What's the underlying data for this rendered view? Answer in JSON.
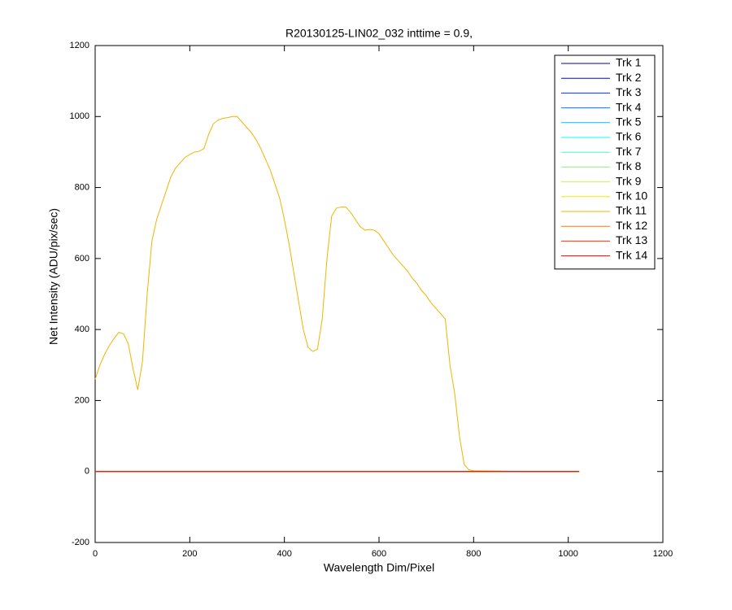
{
  "chart_data": {
    "type": "line",
    "title": "R20130125-LIN02_032 inttime = 0.9,",
    "x_label": "Wavelength Dim/Pixel",
    "y_label": "Net Intensity (ADU/pix/sec)",
    "xlim": [
      0,
      1200
    ],
    "xticks": [
      0,
      200,
      400,
      600,
      800,
      1000,
      1200
    ],
    "ylim": [
      -200,
      1200
    ],
    "yticks": [
      -200,
      0,
      200,
      400,
      600,
      800,
      1000,
      1200
    ],
    "grid": false,
    "legend": "upper right",
    "series": [
      {
        "name": "Trk 1",
        "color": "#0000aa",
        "x": [
          0,
          256,
          512,
          768,
          1023
        ],
        "values": [
          0,
          0,
          0,
          0,
          0
        ]
      },
      {
        "name": "Trk 2",
        "color": "#0000ee",
        "x": [
          0,
          256,
          512,
          768,
          1023
        ],
        "values": [
          0,
          0,
          0,
          0,
          0
        ]
      },
      {
        "name": "Trk 3",
        "color": "#0033ff",
        "x": [
          0,
          256,
          512,
          768,
          1023
        ],
        "values": [
          0,
          0,
          0,
          0,
          0
        ]
      },
      {
        "name": "Trk 4",
        "color": "#0077ff",
        "x": [
          0,
          256,
          512,
          768,
          1023
        ],
        "values": [
          0,
          0,
          0,
          0,
          0
        ]
      },
      {
        "name": "Trk 5",
        "color": "#00bbff",
        "x": [
          0,
          256,
          512,
          768,
          1023
        ],
        "values": [
          0,
          0,
          0,
          0,
          0
        ]
      },
      {
        "name": "Trk 6",
        "color": "#00ffff",
        "x": [
          0,
          256,
          512,
          768,
          1023
        ],
        "values": [
          0,
          0,
          0,
          0,
          0
        ]
      },
      {
        "name": "Trk 7",
        "color": "#44ffbb",
        "x": [
          0,
          256,
          512,
          768,
          1023
        ],
        "values": [
          0,
          0,
          0,
          0,
          0
        ]
      },
      {
        "name": "Trk 8",
        "color": "#88ff77",
        "x": [
          0,
          256,
          512,
          768,
          1023
        ],
        "values": [
          0,
          0,
          0,
          0,
          0
        ]
      },
      {
        "name": "Trk 9",
        "color": "#bbff44",
        "x": [
          0,
          256,
          512,
          768,
          1023
        ],
        "values": [
          0,
          0,
          0,
          0,
          0
        ]
      },
      {
        "name": "Trk 10",
        "color": "#eeee00",
        "x": [
          0,
          256,
          512,
          768,
          1023
        ],
        "values": [
          0,
          0,
          0,
          0,
          0
        ]
      },
      {
        "name": "Trk 11",
        "color": "#f0b400",
        "x": [
          0,
          10,
          20,
          30,
          40,
          50,
          60,
          70,
          80,
          90,
          100,
          110,
          120,
          130,
          140,
          150,
          160,
          170,
          180,
          190,
          200,
          210,
          220,
          230,
          240,
          250,
          260,
          270,
          280,
          290,
          300,
          310,
          320,
          330,
          340,
          350,
          360,
          370,
          380,
          390,
          400,
          410,
          420,
          430,
          440,
          450,
          460,
          470,
          480,
          490,
          500,
          510,
          520,
          530,
          540,
          550,
          560,
          570,
          580,
          590,
          600,
          610,
          620,
          630,
          640,
          650,
          660,
          670,
          680,
          690,
          700,
          710,
          720,
          730,
          740,
          750,
          760,
          770,
          780,
          790,
          800,
          850,
          900,
          950,
          1000,
          1023
        ],
        "values": [
          260,
          300,
          330,
          355,
          375,
          392,
          388,
          360,
          290,
          230,
          310,
          500,
          650,
          710,
          750,
          790,
          830,
          855,
          870,
          885,
          893,
          900,
          902,
          910,
          950,
          980,
          990,
          995,
          997,
          1000,
          1000,
          985,
          970,
          955,
          935,
          910,
          880,
          850,
          810,
          770,
          710,
          640,
          560,
          480,
          400,
          350,
          338,
          345,
          430,
          600,
          720,
          742,
          745,
          745,
          730,
          710,
          690,
          680,
          682,
          680,
          670,
          650,
          630,
          610,
          595,
          580,
          565,
          545,
          530,
          510,
          495,
          475,
          460,
          445,
          430,
          300,
          220,
          100,
          20,
          5,
          2,
          1,
          0,
          0,
          0,
          0
        ]
      },
      {
        "name": "Trk 12",
        "color": "#ff7700",
        "x": [
          0,
          256,
          512,
          768,
          1023
        ],
        "values": [
          0,
          0,
          0,
          0,
          0
        ]
      },
      {
        "name": "Trk 13",
        "color": "#ff3300",
        "x": [
          0,
          256,
          512,
          768,
          1023
        ],
        "values": [
          0,
          0,
          0,
          0,
          0
        ]
      },
      {
        "name": "Trk 14",
        "color": "#ee0000",
        "x": [
          0,
          256,
          512,
          768,
          1023
        ],
        "values": [
          0,
          0,
          0,
          0,
          0
        ]
      }
    ]
  }
}
